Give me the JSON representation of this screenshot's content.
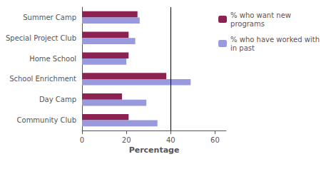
{
  "chart_data": {
    "type": "bar",
    "orientation": "horizontal",
    "categories": [
      "Summer Camp",
      "Special Project Club",
      "Home School",
      "School Enrichment",
      "Day Camp",
      "Community Club"
    ],
    "series": [
      {
        "name": "% who want new\nprograms",
        "color": "#8B2252",
        "values": [
          25,
          21,
          21,
          38,
          18,
          21
        ]
      },
      {
        "name": "% who have worked with\nin past",
        "color": "#9999DD",
        "values": [
          26,
          24,
          20,
          49,
          29,
          34
        ]
      }
    ],
    "xlabel": "Percentage",
    "xlim": [
      0,
      65
    ],
    "xticks": [
      0,
      20,
      40,
      60
    ],
    "vline_x": 40,
    "grid": false,
    "legend": "upper right"
  }
}
